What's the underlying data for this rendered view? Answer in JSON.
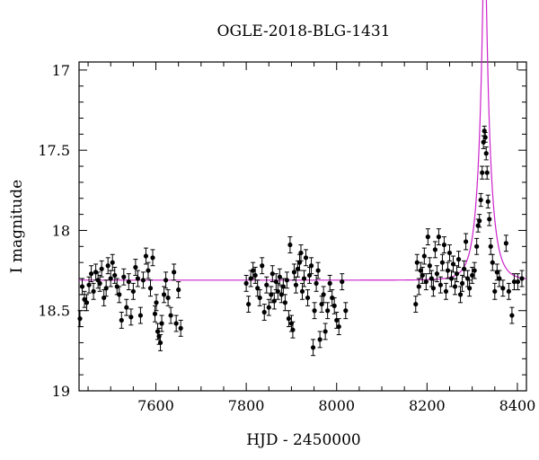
{
  "chart_data": {
    "type": "scatter",
    "title": "OGLE-2018-BLG-1431",
    "xlabel": "HJD - 2450000",
    "ylabel": "I magnitude",
    "xlim": [
      7430,
      8420
    ],
    "ylim": [
      19,
      16.95
    ],
    "y_inverted": true,
    "xticks": [
      7600,
      7800,
      8000,
      8200,
      8400
    ],
    "yticks": [
      17,
      17.5,
      18,
      18.5,
      19
    ],
    "grid": false,
    "marker_color": "#000000",
    "model_color": "#cc22cc",
    "baseline_mag": 18.31,
    "points": [
      [
        7432,
        18.55,
        0.05
      ],
      [
        7437,
        18.35,
        0.05
      ],
      [
        7442,
        18.43,
        0.05
      ],
      [
        7447,
        18.45,
        0.05
      ],
      [
        7452,
        18.34,
        0.05
      ],
      [
        7457,
        18.27,
        0.05
      ],
      [
        7462,
        18.38,
        0.05
      ],
      [
        7467,
        18.26,
        0.05
      ],
      [
        7472,
        18.31,
        0.05
      ],
      [
        7476,
        18.33,
        0.05
      ],
      [
        7480,
        18.24,
        0.05
      ],
      [
        7485,
        18.42,
        0.05
      ],
      [
        7490,
        18.36,
        0.05
      ],
      [
        7494,
        18.22,
        0.05
      ],
      [
        7500,
        18.3,
        0.05
      ],
      [
        7504,
        18.2,
        0.05
      ],
      [
        7509,
        18.28,
        0.05
      ],
      [
        7514,
        18.35,
        0.05
      ],
      [
        7519,
        18.4,
        0.05
      ],
      [
        7524,
        18.56,
        0.05
      ],
      [
        7529,
        18.29,
        0.05
      ],
      [
        7535,
        18.48,
        0.05
      ],
      [
        7540,
        18.32,
        0.05
      ],
      [
        7545,
        18.54,
        0.05
      ],
      [
        7550,
        18.38,
        0.05
      ],
      [
        7555,
        18.23,
        0.05
      ],
      [
        7560,
        18.3,
        0.05
      ],
      [
        7566,
        18.53,
        0.05
      ],
      [
        7572,
        18.31,
        0.05
      ],
      [
        7578,
        18.16,
        0.05
      ],
      [
        7583,
        18.25,
        0.05
      ],
      [
        7588,
        18.36,
        0.05
      ],
      [
        7593,
        18.17,
        0.05
      ],
      [
        7598,
        18.52,
        0.05
      ],
      [
        7601,
        18.45,
        0.05
      ],
      [
        7604,
        18.63,
        0.05
      ],
      [
        7607,
        18.66,
        0.05
      ],
      [
        7610,
        18.7,
        0.05
      ],
      [
        7613,
        18.58,
        0.05
      ],
      [
        7618,
        18.4,
        0.05
      ],
      [
        7622,
        18.31,
        0.05
      ],
      [
        7627,
        18.42,
        0.05
      ],
      [
        7633,
        18.53,
        0.05
      ],
      [
        7640,
        18.26,
        0.05
      ],
      [
        7645,
        18.58,
        0.05
      ],
      [
        7650,
        18.37,
        0.05
      ],
      [
        7655,
        18.61,
        0.05
      ],
      [
        7800,
        18.33,
        0.05
      ],
      [
        7805,
        18.46,
        0.05
      ],
      [
        7810,
        18.3,
        0.05
      ],
      [
        7815,
        18.25,
        0.05
      ],
      [
        7820,
        18.28,
        0.05
      ],
      [
        7825,
        18.36,
        0.05
      ],
      [
        7830,
        18.42,
        0.05
      ],
      [
        7835,
        18.22,
        0.05
      ],
      [
        7840,
        18.51,
        0.05
      ],
      [
        7845,
        18.34,
        0.05
      ],
      [
        7850,
        18.48,
        0.05
      ],
      [
        7855,
        18.4,
        0.05
      ],
      [
        7858,
        18.27,
        0.05
      ],
      [
        7862,
        18.44,
        0.05
      ],
      [
        7866,
        18.32,
        0.05
      ],
      [
        7870,
        18.38,
        0.05
      ],
      [
        7874,
        18.29,
        0.05
      ],
      [
        7878,
        18.4,
        0.05
      ],
      [
        7882,
        18.35,
        0.05
      ],
      [
        7886,
        18.45,
        0.05
      ],
      [
        7890,
        18.31,
        0.05
      ],
      [
        7894,
        18.55,
        0.05
      ],
      [
        7897,
        18.09,
        0.05
      ],
      [
        7900,
        18.58,
        0.05
      ],
      [
        7903,
        18.62,
        0.05
      ],
      [
        7906,
        18.26,
        0.05
      ],
      [
        7910,
        18.34,
        0.05
      ],
      [
        7914,
        18.24,
        0.05
      ],
      [
        7918,
        18.2,
        0.05
      ],
      [
        7921,
        18.14,
        0.05
      ],
      [
        7924,
        18.38,
        0.05
      ],
      [
        7928,
        18.3,
        0.05
      ],
      [
        7932,
        18.17,
        0.05
      ],
      [
        7936,
        18.42,
        0.05
      ],
      [
        7940,
        18.28,
        0.05
      ],
      [
        7944,
        18.22,
        0.05
      ],
      [
        7948,
        18.73,
        0.05
      ],
      [
        7951,
        18.5,
        0.05
      ],
      [
        7955,
        18.33,
        0.05
      ],
      [
        7959,
        18.25,
        0.05
      ],
      [
        7963,
        18.68,
        0.05
      ],
      [
        7967,
        18.46,
        0.05
      ],
      [
        7971,
        18.4,
        0.05
      ],
      [
        7975,
        18.63,
        0.05
      ],
      [
        7980,
        18.5,
        0.05
      ],
      [
        7985,
        18.33,
        0.05
      ],
      [
        7990,
        18.42,
        0.05
      ],
      [
        7995,
        18.47,
        0.05
      ],
      [
        8000,
        18.56,
        0.05
      ],
      [
        8005,
        18.6,
        0.05
      ],
      [
        8012,
        18.32,
        0.05
      ],
      [
        8020,
        18.5,
        0.05
      ],
      [
        8175,
        18.46,
        0.05
      ],
      [
        8178,
        18.2,
        0.05
      ],
      [
        8182,
        18.35,
        0.05
      ],
      [
        8186,
        18.25,
        0.05
      ],
      [
        8190,
        18.28,
        0.05
      ],
      [
        8194,
        18.16,
        0.05
      ],
      [
        8198,
        18.32,
        0.05
      ],
      [
        8202,
        18.04,
        0.05
      ],
      [
        8206,
        18.22,
        0.05
      ],
      [
        8210,
        18.3,
        0.05
      ],
      [
        8214,
        18.36,
        0.05
      ],
      [
        8218,
        18.12,
        0.05
      ],
      [
        8222,
        18.27,
        0.05
      ],
      [
        8226,
        18.04,
        0.05
      ],
      [
        8230,
        18.34,
        0.05
      ],
      [
        8234,
        18.2,
        0.05
      ],
      [
        8238,
        18.09,
        0.05
      ],
      [
        8242,
        18.38,
        0.05
      ],
      [
        8246,
        18.25,
        0.05
      ],
      [
        8250,
        18.14,
        0.05
      ],
      [
        8254,
        18.3,
        0.05
      ],
      [
        8258,
        18.21,
        0.05
      ],
      [
        8262,
        18.35,
        0.05
      ],
      [
        8266,
        18.27,
        0.05
      ],
      [
        8270,
        18.18,
        0.05
      ],
      [
        8274,
        18.4,
        0.05
      ],
      [
        8278,
        18.33,
        0.05
      ],
      [
        8282,
        18.24,
        0.05
      ],
      [
        8286,
        18.07,
        0.05
      ],
      [
        8290,
        18.3,
        0.05
      ],
      [
        8294,
        18.36,
        0.05
      ],
      [
        8300,
        18.28,
        0.05
      ],
      [
        8305,
        18.25,
        0.05
      ],
      [
        8310,
        18.1,
        0.05
      ],
      [
        8313,
        17.97,
        0.04
      ],
      [
        8316,
        17.94,
        0.04
      ],
      [
        8319,
        17.81,
        0.04
      ],
      [
        8322,
        17.64,
        0.04
      ],
      [
        8325,
        17.45,
        0.04
      ],
      [
        8327,
        17.38,
        0.03
      ],
      [
        8329,
        17.42,
        0.03
      ],
      [
        8331,
        17.52,
        0.04
      ],
      [
        8333,
        17.64,
        0.04
      ],
      [
        8335,
        17.82,
        0.04
      ],
      [
        8338,
        17.93,
        0.04
      ],
      [
        8341,
        18.1,
        0.05
      ],
      [
        8345,
        18.2,
        0.05
      ],
      [
        8350,
        18.38,
        0.05
      ],
      [
        8355,
        18.26,
        0.05
      ],
      [
        8360,
        18.3,
        0.05
      ],
      [
        8368,
        18.36,
        0.05
      ],
      [
        8375,
        18.08,
        0.05
      ],
      [
        8381,
        18.38,
        0.05
      ],
      [
        8388,
        18.53,
        0.05
      ],
      [
        8393,
        18.32,
        0.05
      ],
      [
        8401,
        18.32,
        0.05
      ],
      [
        8410,
        18.3,
        0.05
      ]
    ]
  }
}
